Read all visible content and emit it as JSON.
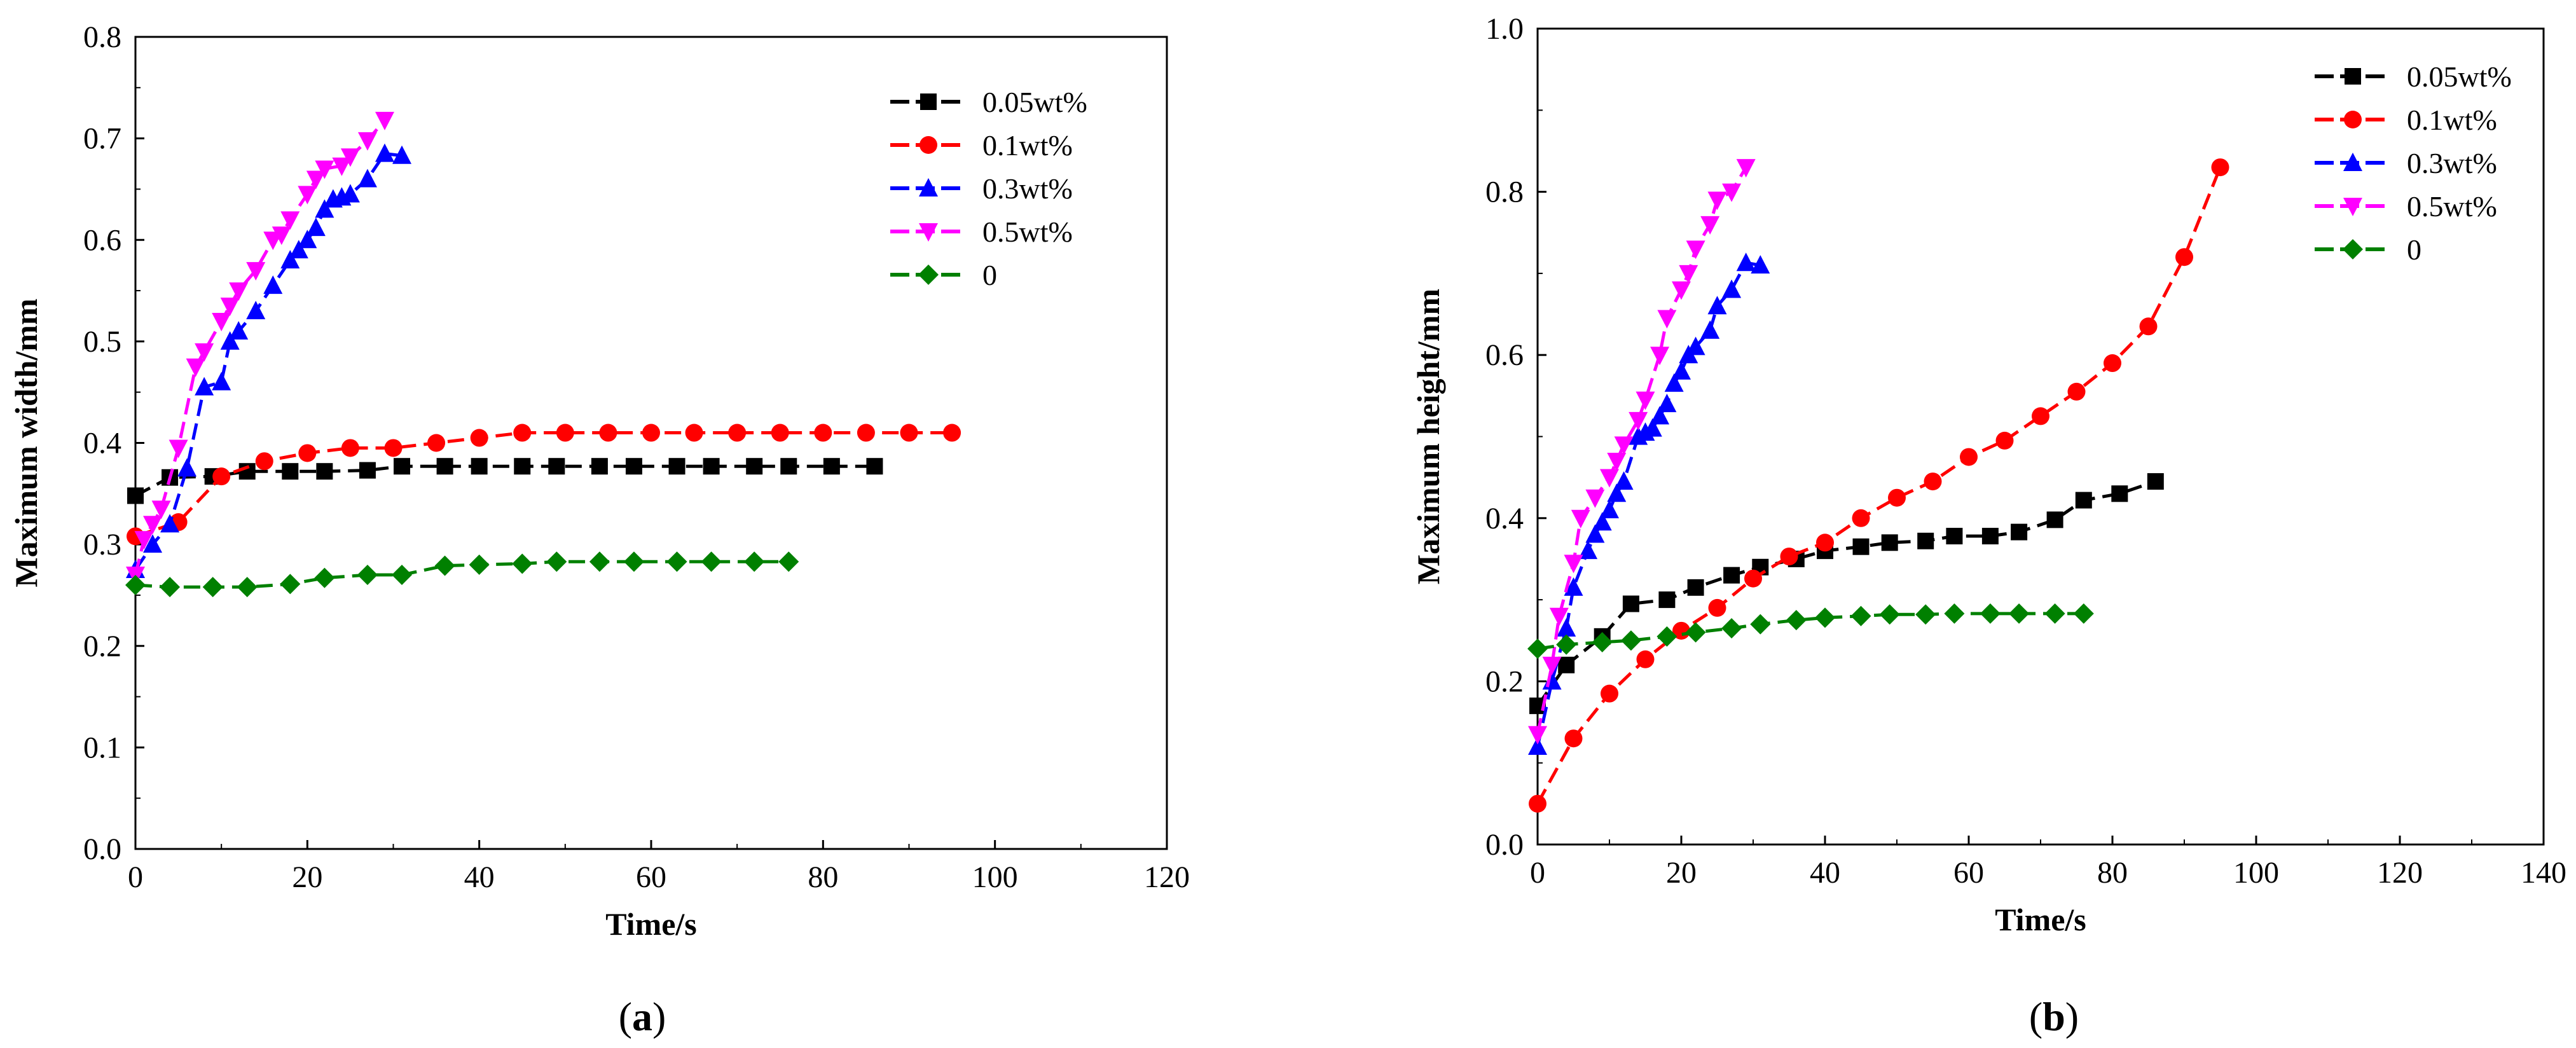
{
  "figure": {
    "panels": [
      {
        "caption_open": "(",
        "caption_letter": "a",
        "caption_close": ")"
      },
      {
        "caption_open": "(",
        "caption_letter": "b",
        "caption_close": ")"
      }
    ]
  },
  "colors": {
    "0.05wt%": "#000000",
    "0.1wt%": "#ff0000",
    "0.3wt%": "#0000ff",
    "0.5wt%": "#ff00ff",
    "0": "#008000"
  },
  "chart_data": [
    {
      "type": "line",
      "title": "",
      "xlabel": "Time/s",
      "ylabel": "Maximum width/mm",
      "xlim": [
        0,
        120
      ],
      "ylim": [
        0,
        0.8
      ],
      "xticks": [
        0,
        20,
        40,
        60,
        80,
        100,
        120
      ],
      "yticks": [
        0.0,
        0.1,
        0.2,
        0.3,
        0.4,
        0.5,
        0.6,
        0.7,
        0.8
      ],
      "ytick_labels": [
        "0.0",
        "0.1",
        "0.2",
        "0.3",
        "0.4",
        "0.5",
        "0.6",
        "0.7",
        "0.8"
      ],
      "legend_position": "top-right",
      "grid": false,
      "series": [
        {
          "name": "0.05wt%",
          "marker": "square",
          "color": "#000000",
          "x": [
            0,
            4,
            9,
            13,
            18,
            22,
            27,
            31,
            36,
            40,
            45,
            49,
            54,
            58,
            63,
            67,
            72,
            76,
            81,
            86
          ],
          "y": [
            0.348,
            0.366,
            0.367,
            0.372,
            0.372,
            0.372,
            0.373,
            0.377,
            0.377,
            0.377,
            0.377,
            0.377,
            0.377,
            0.377,
            0.377,
            0.377,
            0.377,
            0.377,
            0.377,
            0.377
          ]
        },
        {
          "name": "0.1wt%",
          "marker": "circle",
          "color": "#ff0000",
          "x": [
            0,
            5,
            10,
            15,
            20,
            25,
            30,
            35,
            40,
            45,
            50,
            55,
            60,
            65,
            70,
            75,
            80,
            85,
            90,
            95
          ],
          "y": [
            0.308,
            0.322,
            0.367,
            0.382,
            0.39,
            0.395,
            0.395,
            0.4,
            0.405,
            0.41,
            0.41,
            0.41,
            0.41,
            0.41,
            0.41,
            0.41,
            0.41,
            0.41,
            0.41,
            0.41
          ]
        },
        {
          "name": "0.3wt%",
          "marker": "triangle-up",
          "color": "#0000ff",
          "x": [
            0,
            2,
            4,
            6,
            8,
            10,
            11,
            12,
            14,
            16,
            18,
            19,
            20,
            21,
            22,
            23,
            24,
            25,
            27,
            29,
            31
          ],
          "y": [
            0.275,
            0.3,
            0.32,
            0.375,
            0.455,
            0.46,
            0.5,
            0.51,
            0.53,
            0.555,
            0.58,
            0.59,
            0.6,
            0.612,
            0.63,
            0.64,
            0.642,
            0.645,
            0.66,
            0.685,
            0.683
          ]
        },
        {
          "name": "0.5wt%",
          "marker": "triangle-down",
          "color": "#ff00ff",
          "x": [
            0,
            1,
            2,
            3,
            5,
            7,
            8,
            10,
            11,
            12,
            14,
            16,
            17,
            18,
            20,
            21,
            22,
            24,
            25,
            27,
            29
          ],
          "y": [
            0.27,
            0.305,
            0.32,
            0.335,
            0.395,
            0.475,
            0.49,
            0.52,
            0.535,
            0.55,
            0.57,
            0.6,
            0.605,
            0.62,
            0.645,
            0.66,
            0.67,
            0.673,
            0.682,
            0.698,
            0.718
          ]
        },
        {
          "name": "0",
          "marker": "diamond",
          "color": "#008000",
          "x": [
            0,
            4,
            9,
            13,
            18,
            22,
            27,
            31,
            36,
            40,
            45,
            49,
            54,
            58,
            63,
            67,
            72,
            76
          ],
          "y": [
            0.26,
            0.258,
            0.258,
            0.258,
            0.261,
            0.267,
            0.27,
            0.27,
            0.279,
            0.28,
            0.281,
            0.283,
            0.283,
            0.283,
            0.283,
            0.283,
            0.283,
            0.283
          ]
        }
      ]
    },
    {
      "type": "line",
      "title": "",
      "xlabel": "Time/s",
      "ylabel": "Maximum height/mm",
      "xlim": [
        0,
        140
      ],
      "ylim": [
        0,
        1.0
      ],
      "xticks": [
        0,
        20,
        40,
        60,
        80,
        100,
        120,
        140
      ],
      "yticks": [
        0.0,
        0.2,
        0.4,
        0.6,
        0.8,
        1.0
      ],
      "ytick_labels": [
        "0.0",
        "0.2",
        "0.4",
        "0.6",
        "0.8",
        "1.0"
      ],
      "legend_position": "top-right",
      "grid": false,
      "series": [
        {
          "name": "0.05wt%",
          "marker": "square",
          "color": "#000000",
          "x": [
            0,
            4,
            9,
            13,
            18,
            22,
            27,
            31,
            36,
            40,
            45,
            49,
            54,
            58,
            63,
            67,
            72,
            76,
            81,
            86
          ],
          "y": [
            0.17,
            0.22,
            0.255,
            0.295,
            0.3,
            0.315,
            0.33,
            0.34,
            0.35,
            0.36,
            0.365,
            0.37,
            0.372,
            0.378,
            0.378,
            0.383,
            0.398,
            0.422,
            0.43,
            0.445
          ]
        },
        {
          "name": "0.1wt%",
          "marker": "circle",
          "color": "#ff0000",
          "x": [
            0,
            5,
            10,
            15,
            20,
            25,
            30,
            35,
            40,
            45,
            50,
            55,
            60,
            65,
            70,
            75,
            80,
            85,
            90,
            95
          ],
          "y": [
            0.05,
            0.13,
            0.185,
            0.227,
            0.262,
            0.29,
            0.326,
            0.353,
            0.37,
            0.4,
            0.425,
            0.445,
            0.475,
            0.495,
            0.525,
            0.555,
            0.59,
            0.635,
            0.72,
            0.83
          ]
        },
        {
          "name": "0.3wt%",
          "marker": "triangle-up",
          "color": "#0000ff",
          "x": [
            0,
            2,
            4,
            5,
            7,
            8,
            9,
            10,
            11,
            12,
            14,
            15,
            16,
            17,
            18,
            19,
            20,
            21,
            22,
            24,
            25,
            27,
            29,
            31
          ],
          "y": [
            0.12,
            0.2,
            0.265,
            0.315,
            0.36,
            0.38,
            0.395,
            0.41,
            0.43,
            0.445,
            0.5,
            0.505,
            0.51,
            0.525,
            0.54,
            0.565,
            0.58,
            0.6,
            0.61,
            0.63,
            0.66,
            0.68,
            0.713,
            0.71
          ]
        },
        {
          "name": "0.5wt%",
          "marker": "triangle-down",
          "color": "#ff00ff",
          "x": [
            0,
            2,
            3,
            5,
            6,
            8,
            10,
            11,
            12,
            14,
            15,
            17,
            18,
            20,
            21,
            22,
            24,
            25,
            27,
            29
          ],
          "y": [
            0.135,
            0.22,
            0.28,
            0.345,
            0.4,
            0.425,
            0.45,
            0.47,
            0.49,
            0.52,
            0.545,
            0.6,
            0.645,
            0.68,
            0.7,
            0.73,
            0.76,
            0.79,
            0.8,
            0.83
          ]
        },
        {
          "name": "0",
          "marker": "diamond",
          "color": "#008000",
          "x": [
            0,
            4,
            9,
            13,
            18,
            22,
            27,
            31,
            36,
            40,
            45,
            49,
            54,
            58,
            63,
            67,
            72,
            76
          ],
          "y": [
            0.24,
            0.245,
            0.248,
            0.25,
            0.255,
            0.26,
            0.265,
            0.27,
            0.275,
            0.278,
            0.28,
            0.282,
            0.282,
            0.283,
            0.283,
            0.283,
            0.283,
            0.283
          ]
        }
      ]
    }
  ]
}
